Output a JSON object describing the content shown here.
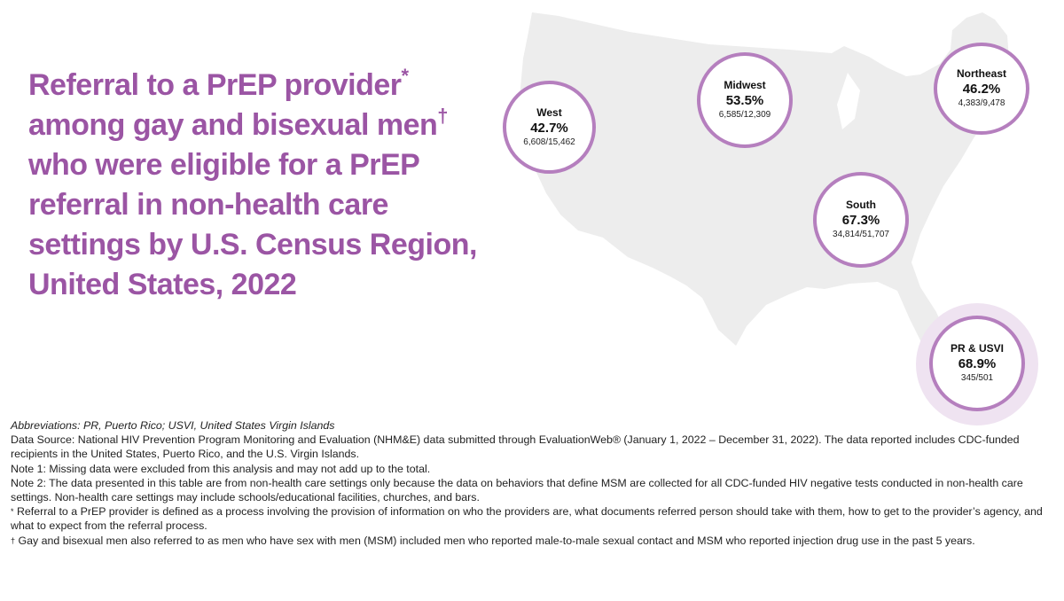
{
  "title": {
    "text": "Referral to a PrEP provider",
    "mark1": "*",
    "text2": " among gay and bisexual men",
    "mark2": "†",
    "text3": " who were eligible for a PrEP referral in non-health care settings by U.S. Census Region, United States, 2022"
  },
  "colors": {
    "title": "#9b55a4",
    "bubble_border": "#b57fbe",
    "halo": "#efe3f1",
    "map_fill": "#ededed"
  },
  "regions": [
    {
      "name": "West",
      "percent": "42.7%",
      "ratio": "6,608/15,462"
    },
    {
      "name": "Midwest",
      "percent": "53.5%",
      "ratio": "6,585/12,309"
    },
    {
      "name": "Northeast",
      "percent": "46.2%",
      "ratio": "4,383/9,478"
    },
    {
      "name": "South",
      "percent": "67.3%",
      "ratio": "34,814/51,707"
    },
    {
      "name": "PR & USVI",
      "percent": "68.9%",
      "ratio": "345/501"
    }
  ],
  "notes": {
    "abbreviations": "Abbreviations: PR, Puerto Rico; USVI, United States Virgin Islands",
    "source": "Data Source: National HIV Prevention Program Monitoring and Evaluation (NHM&E) data submitted through EvaluationWeb® (January 1, 2022 – December 31, 2022). The data reported includes CDC-funded recipients in the United States, Puerto Rico, and the U.S. Virgin Islands.",
    "note1": "Note 1: Missing data were excluded from this analysis and may not add up to the total.",
    "note2": "Note 2: The data presented in this table are from non-health care settings only because the data on behaviors that define MSM are collected for all CDC-funded HIV negative tests conducted in non-health care settings. Non-health care settings may include schools/educational facilities, churches, and bars.",
    "footnote1_mark": "*",
    "footnote1": " Referral to a PrEP provider is defined as a process involving the provision of information on who the providers are, what documents referred person should take with them, how to get to the provider’s agency, and what to expect from the referral process.",
    "footnote2_mark": "†",
    "footnote2": " Gay and bisexual men also referred to as men who have sex with men (MSM) included men who reported male-to-male sexual contact and MSM who reported injection drug use in the past 5 years."
  }
}
